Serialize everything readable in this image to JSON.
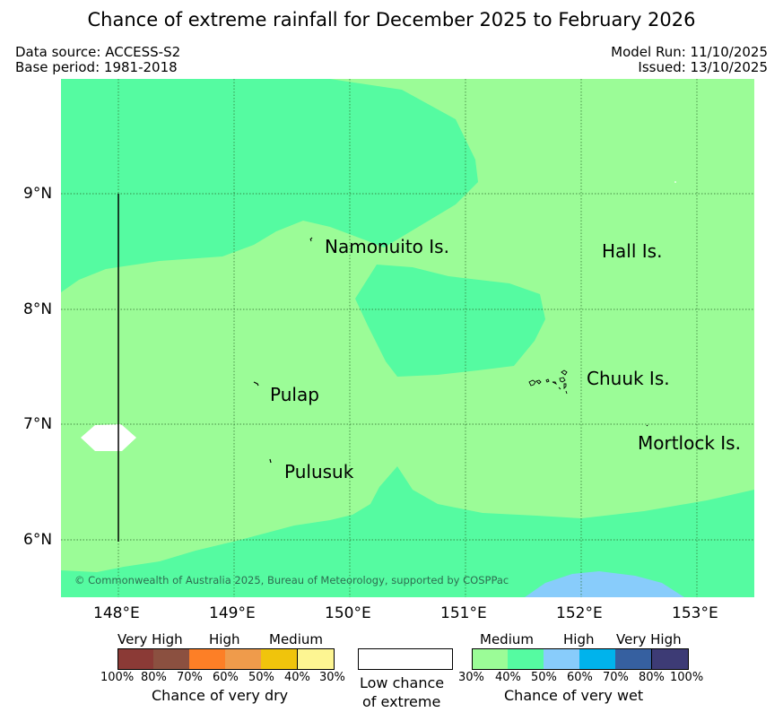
{
  "title": "Chance of extreme rainfall for December 2025 to February 2026",
  "meta": {
    "data_source": "Data source: ACCESS-S2",
    "base_period": "Base period: 1981-2018",
    "model_run": "Model Run: 11/10/2025",
    "issued": "Issued: 13/10/2025"
  },
  "map": {
    "lat_labels": [
      "9°N",
      "8°N",
      "7°N",
      "6°N"
    ],
    "lon_labels": [
      "148°E",
      "149°E",
      "150°E",
      "151°E",
      "152°E",
      "153°E"
    ],
    "places": [
      "Namonuito Is.",
      "Hall Is.",
      "Chuuk Is.",
      "Pulap",
      "Mortlock Is.",
      "Pulusuk"
    ],
    "copyright": "© Commonwealth of Australia 2025, Bureau of Meteorology, supported by COSPPac",
    "region_colors": {
      "wet_30_40": "#9bfc97",
      "wet_40_50": "#55fba1",
      "wet_50_60": "#88ccfb",
      "low_chance": "#ffffff"
    }
  },
  "legend": {
    "dry": {
      "headers": [
        "Very High",
        "High",
        "Medium"
      ],
      "percents": [
        "100%",
        "80%",
        "70%",
        "60%",
        "50%",
        "40%",
        "30%"
      ],
      "colors": [
        "#8b3a36",
        "#8b5040",
        "#fd7f26",
        "#ef9b4b",
        "#f0c40c",
        "#fdf592"
      ],
      "caption": "Chance of very dry"
    },
    "low": {
      "caption_line1": "Low chance",
      "caption_line2": "of extreme"
    },
    "wet": {
      "headers": [
        "Medium",
        "High",
        "Very High"
      ],
      "percents": [
        "30%",
        "40%",
        "50%",
        "60%",
        "70%",
        "80%",
        "100%"
      ],
      "colors": [
        "#9bfc97",
        "#55fba1",
        "#88ccfb",
        "#00b3ec",
        "#3660a0",
        "#3d3b75"
      ],
      "caption": "Chance of very wet"
    }
  }
}
